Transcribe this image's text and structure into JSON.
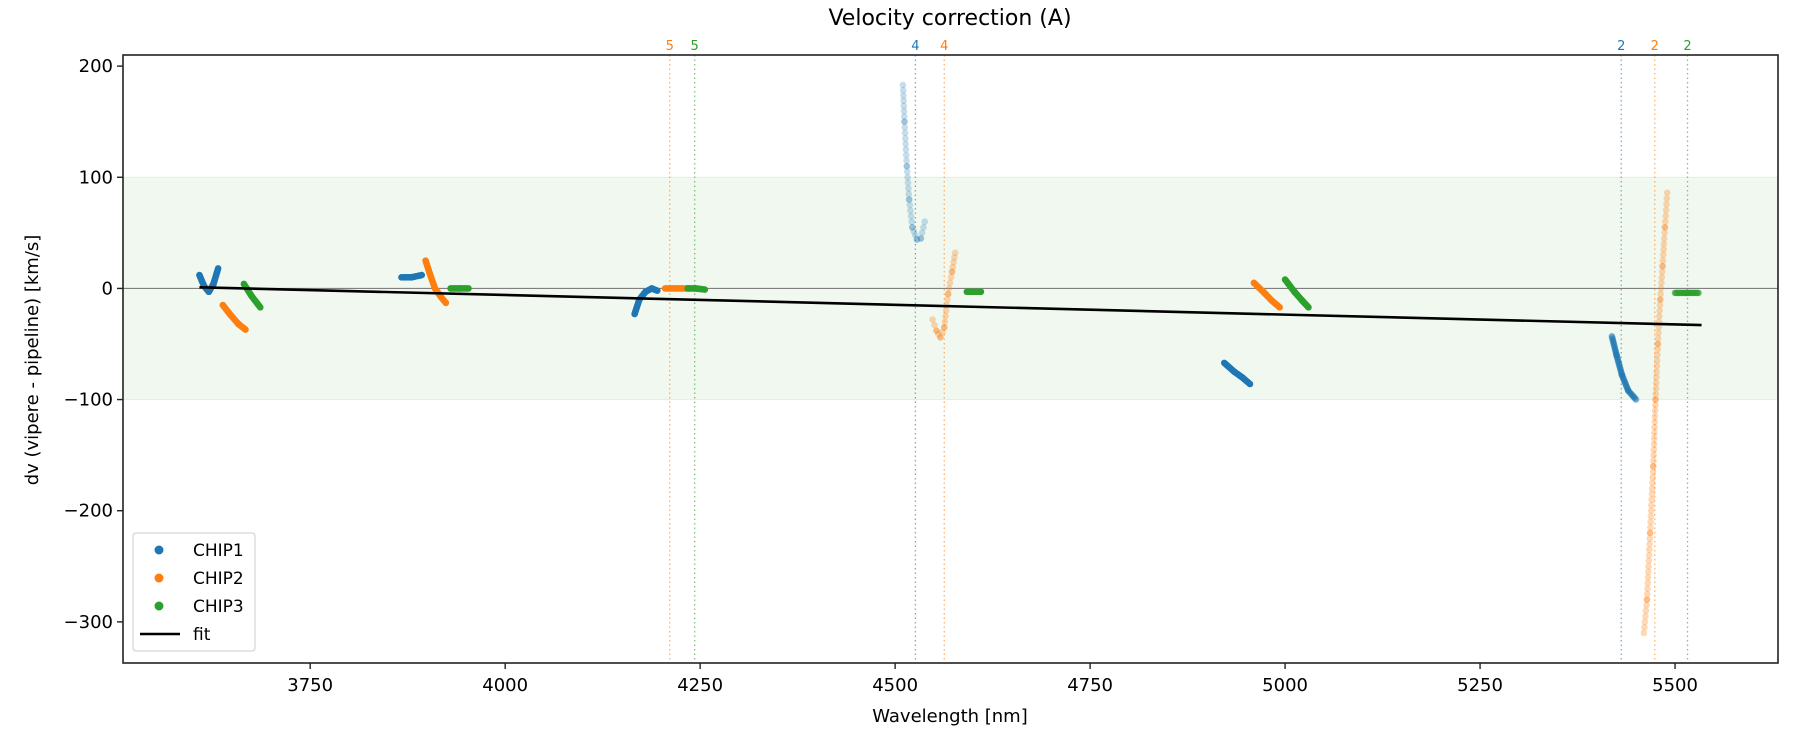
{
  "chart_data": {
    "type": "scatter",
    "title": "Velocity correction (A)",
    "xlabel": "Wavelength [nm]",
    "ylabel": "dv (vipere - pipeline) [km/s]",
    "xlim": [
      3510,
      5632
    ],
    "ylim": [
      -337,
      210
    ],
    "xticks": [
      3750,
      4000,
      4250,
      4500,
      4750,
      5000,
      5250,
      5500
    ],
    "yticks": [
      200,
      100,
      0,
      -100,
      -200,
      -300
    ],
    "ytick_labels": [
      "200",
      "100",
      "0",
      "−100",
      "−200",
      "−300"
    ],
    "grid": false,
    "band": {
      "y0": -100,
      "y1": 100,
      "color": "#2ca02c"
    },
    "zero_line": 0,
    "legend_position": "lower-left",
    "legend": [
      {
        "label": "CHIP1",
        "type": "marker",
        "color": "#1f77b4"
      },
      {
        "label": "CHIP2",
        "type": "marker",
        "color": "#ff7f0e"
      },
      {
        "label": "CHIP3",
        "type": "marker",
        "color": "#2ca02c"
      },
      {
        "label": "fit",
        "type": "line",
        "color": "#000000"
      }
    ],
    "fit": {
      "x": [
        3608,
        5534
      ],
      "y": [
        1,
        -33
      ]
    },
    "order_markers": [
      {
        "label": "5",
        "x": 4211,
        "color": "#ff7f0e"
      },
      {
        "label": "5",
        "x": 4243,
        "color": "#2ca02c"
      },
      {
        "label": "4",
        "x": 4526,
        "color": "#1f77b4"
      },
      {
        "label": "4",
        "x": 4563,
        "color": "#ff7f0e"
      },
      {
        "label": "2",
        "x": 5431,
        "color": "#1f77b4"
      },
      {
        "label": "2",
        "x": 5474,
        "color": "#ff7f0e"
      },
      {
        "label": "2",
        "x": 5516,
        "color": "#2ca02c"
      }
    ],
    "series": [
      {
        "name": "CHIP1",
        "color": "#1f77b4",
        "segments": [
          {
            "alpha": 1,
            "x": [
              3608,
              3614,
              3620,
              3626,
              3632
            ],
            "y": [
              12,
              2,
              -3,
              4,
              18
            ]
          },
          {
            "alpha": 1,
            "x": [
              3867,
              3880,
              3893
            ],
            "y": [
              10,
              10,
              12
            ]
          },
          {
            "alpha": 1,
            "x": [
              4166,
              4172,
              4180,
              4188,
              4195
            ],
            "y": [
              -23,
              -10,
              -3,
              0,
              -2
            ]
          },
          {
            "alpha": 0.25,
            "x": [
              4510,
              4512,
              4515,
              4518,
              4522,
              4528,
              4533,
              4538
            ],
            "y": [
              183,
              150,
              110,
              80,
              55,
              44,
              45,
              60
            ]
          },
          {
            "alpha": 1,
            "x": [
              4922,
              4935,
              4945,
              4955
            ],
            "y": [
              -67,
              -75,
              -80,
              -86
            ]
          },
          {
            "alpha": 0.5,
            "x": [
              5419,
              5425,
              5432,
              5440,
              5450
            ],
            "y": [
              -43,
              -60,
              -78,
              -92,
              -100
            ]
          }
        ]
      },
      {
        "name": "CHIP2",
        "color": "#ff7f0e",
        "segments": [
          {
            "alpha": 1,
            "x": [
              3638,
              3648,
              3658,
              3667
            ],
            "y": [
              -15,
              -24,
              -32,
              -37
            ]
          },
          {
            "alpha": 1,
            "x": [
              3898,
              3903,
              3910,
              3918,
              3924
            ],
            "y": [
              25,
              14,
              0,
              -8,
              -13
            ]
          },
          {
            "alpha": 1,
            "x": [
              4205,
              4220,
              4235
            ],
            "y": [
              0,
              0,
              0
            ]
          },
          {
            "alpha": 0.3,
            "x": [
              4548,
              4553,
              4558,
              4563,
              4568,
              4573,
              4577
            ],
            "y": [
              -28,
              -38,
              -44,
              -35,
              -5,
              15,
              32
            ]
          },
          {
            "alpha": 1,
            "x": [
              4960,
              4972,
              4983,
              4993
            ],
            "y": [
              5,
              -3,
              -11,
              -17
            ]
          },
          {
            "alpha": 0.3,
            "x": [
              5460,
              5464,
              5468,
              5472,
              5475,
              5478,
              5481,
              5484,
              5487,
              5490
            ],
            "y": [
              -310,
              -280,
              -220,
              -160,
              -100,
              -50,
              -10,
              20,
              55,
              86
            ]
          }
        ]
      },
      {
        "name": "CHIP3",
        "color": "#2ca02c",
        "segments": [
          {
            "alpha": 1,
            "x": [
              3665,
              3675,
              3686
            ],
            "y": [
              4,
              -7,
              -17
            ]
          },
          {
            "alpha": 1,
            "x": [
              3930,
              3942,
              3953
            ],
            "y": [
              0,
              0,
              0
            ]
          },
          {
            "alpha": 1,
            "x": [
              4234,
              4244,
              4256
            ],
            "y": [
              0,
              0,
              -1
            ]
          },
          {
            "alpha": 1,
            "x": [
              4592,
              4602,
              4610
            ],
            "y": [
              -3,
              -3,
              -3
            ]
          },
          {
            "alpha": 1,
            "x": [
              5000,
              5012,
              5022,
              5030
            ],
            "y": [
              8,
              -3,
              -11,
              -17
            ]
          },
          {
            "alpha": 0.7,
            "x": [
              5500,
              5515,
              5530
            ],
            "y": [
              -4,
              -4,
              -4
            ]
          }
        ]
      }
    ]
  }
}
